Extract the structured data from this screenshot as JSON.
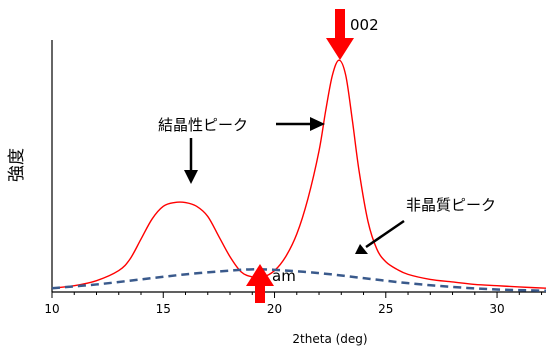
{
  "chart_data": {
    "type": "line",
    "title": "",
    "xlabel": "2theta (deg)",
    "ylabel": "強度",
    "xlim": [
      10,
      32.2
    ],
    "ylim": [
      0,
      1.0
    ],
    "x_ticks": [
      10,
      15,
      20,
      25,
      30
    ],
    "grid": false,
    "series": [
      {
        "name": "",
        "style": "solid",
        "color": "#ff0000",
        "x": [
          10,
          11,
          12,
          13,
          13.5,
          14,
          14.5,
          15,
          15.5,
          16,
          16.5,
          17,
          17.5,
          18,
          18.5,
          19,
          19.5,
          20,
          20.5,
          21,
          21.5,
          22,
          22.3,
          22.6,
          22.9,
          23.2,
          23.5,
          23.8,
          24.2,
          24.6,
          25,
          25.5,
          26,
          27,
          28,
          29,
          30,
          31,
          32.2
        ],
        "y": [
          0.015,
          0.025,
          0.045,
          0.085,
          0.13,
          0.21,
          0.29,
          0.34,
          0.355,
          0.355,
          0.34,
          0.3,
          0.22,
          0.14,
          0.08,
          0.06,
          0.06,
          0.085,
          0.14,
          0.23,
          0.37,
          0.56,
          0.72,
          0.86,
          0.92,
          0.86,
          0.68,
          0.48,
          0.28,
          0.17,
          0.12,
          0.09,
          0.07,
          0.05,
          0.04,
          0.03,
          0.025,
          0.02,
          0.015
        ]
      },
      {
        "name": "",
        "style": "dashed",
        "color": "#3a5a8c",
        "x": [
          10,
          12,
          14,
          16,
          18,
          19,
          20,
          22,
          24,
          26,
          28,
          30,
          32.2
        ],
        "y": [
          0.015,
          0.03,
          0.05,
          0.07,
          0.085,
          0.09,
          0.088,
          0.075,
          0.055,
          0.035,
          0.02,
          0.01,
          0.005
        ]
      }
    ],
    "annotations": [
      {
        "text": "結晶性ピーク"
      },
      {
        "text": "非晶質ピーク"
      },
      {
        "text": "002"
      },
      {
        "text": "am"
      }
    ]
  }
}
